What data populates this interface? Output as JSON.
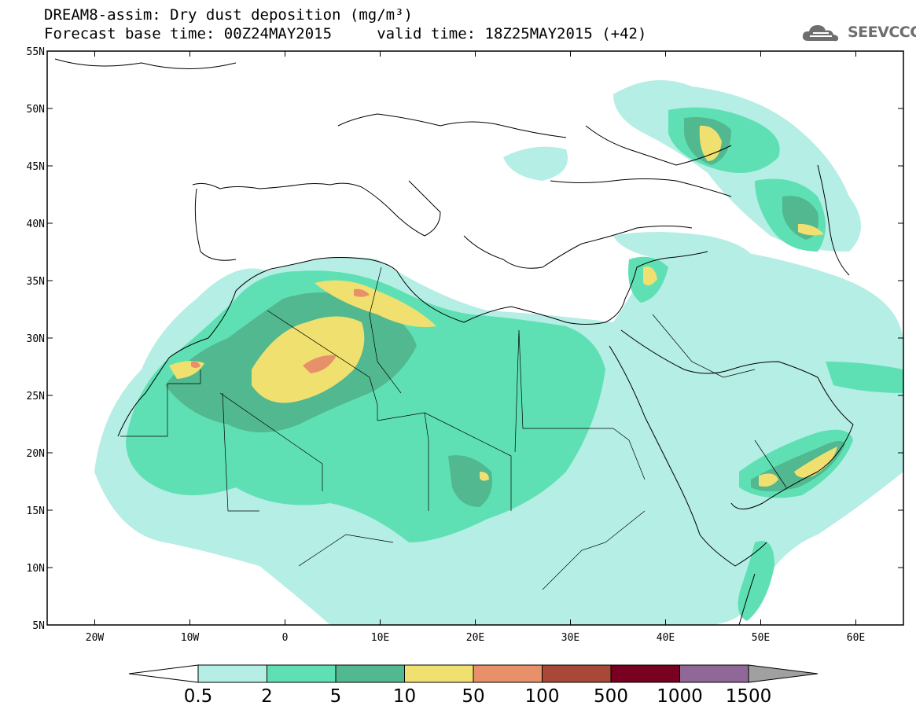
{
  "title_line1": "DREAM8-assim: Dry dust deposition (mg/m³)",
  "title_line2": "Forecast base time: 00Z24MAY2015     valid time: 18Z25MAY2015 (+42)",
  "logo": {
    "text": "SEEVCCC",
    "icon": "cloud-logo-icon",
    "color": "#6e6e6e"
  },
  "map": {
    "lon_range": [
      -25,
      65
    ],
    "lat_range": [
      5,
      55
    ],
    "lat_ticks": [
      {
        "value": 55,
        "label": "55N"
      },
      {
        "value": 50,
        "label": "50N"
      },
      {
        "value": 45,
        "label": "45N"
      },
      {
        "value": 40,
        "label": "40N"
      },
      {
        "value": 35,
        "label": "35N"
      },
      {
        "value": 30,
        "label": "30N"
      },
      {
        "value": 25,
        "label": "25N"
      },
      {
        "value": 20,
        "label": "20N"
      },
      {
        "value": 15,
        "label": "15N"
      },
      {
        "value": 10,
        "label": "10N"
      },
      {
        "value": 5,
        "label": "5N"
      }
    ],
    "lon_ticks": [
      {
        "value": -20,
        "label": "20W"
      },
      {
        "value": -10,
        "label": "10W"
      },
      {
        "value": 0,
        "label": "0"
      },
      {
        "value": 10,
        "label": "10E"
      },
      {
        "value": 20,
        "label": "20E"
      },
      {
        "value": 30,
        "label": "30E"
      },
      {
        "value": 40,
        "label": "40E"
      },
      {
        "value": 50,
        "label": "50E"
      },
      {
        "value": 60,
        "label": "60E"
      }
    ]
  },
  "colorbar": {
    "low_color": "#ffffff",
    "high_color": "#a0a0a0",
    "colors": [
      "#b4eee4",
      "#5fe0b4",
      "#52b890",
      "#f0e070",
      "#e8906a",
      "#a84838",
      "#780020",
      "#906898"
    ],
    "labels": [
      "0.5",
      "2",
      "5",
      "10",
      "50",
      "100",
      "500",
      "1000",
      "1500"
    ]
  }
}
